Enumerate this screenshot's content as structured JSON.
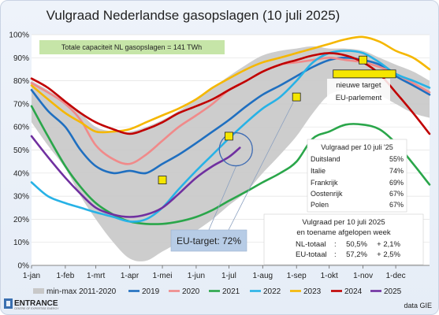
{
  "chart_data": {
    "type": "line",
    "title": "Vulgraad Nederlandse gasopslagen (10 juli 2025)",
    "x_tick_labels": [
      "1-jan",
      "1-feb",
      "1-mrt",
      "1-apr",
      "1-mei",
      "1-jun",
      "1-jul",
      "1-aug",
      "1-sep",
      "1-okt",
      "1-nov",
      "1-dec"
    ],
    "x_tick_days": [
      0,
      31,
      59,
      90,
      120,
      151,
      181,
      212,
      243,
      273,
      304,
      334
    ],
    "x_range_days": [
      0,
      365
    ],
    "ylim": [
      0,
      100
    ],
    "y_ticks": [
      0,
      10,
      20,
      30,
      40,
      50,
      60,
      70,
      80,
      90,
      100
    ],
    "y_tick_labels": [
      "0%",
      "10%",
      "20%",
      "30%",
      "40%",
      "50%",
      "60%",
      "70%",
      "80%",
      "90%",
      "100%"
    ],
    "grid": true,
    "legend_position": "bottom",
    "band": {
      "name": "min-max 2011-2020",
      "color": "#c8c8c8",
      "x": [
        0,
        15,
        31,
        45,
        59,
        75,
        90,
        105,
        120,
        135,
        151,
        166,
        181,
        197,
        212,
        228,
        243,
        258,
        273,
        288,
        304,
        319,
        334,
        350,
        365
      ],
      "upper": [
        80,
        76,
        71,
        66,
        60,
        58,
        58,
        60,
        63,
        67,
        72,
        77,
        82,
        87,
        91,
        93,
        94,
        95,
        94,
        94,
        93,
        90,
        87,
        84,
        80
      ],
      "lower": [
        62,
        52,
        42,
        30,
        20,
        10,
        3,
        2,
        6,
        10,
        15,
        20,
        26,
        32,
        40,
        48,
        56,
        66,
        74,
        76,
        78,
        74,
        70,
        66,
        64
      ]
    },
    "series": [
      {
        "name": "2019",
        "color": "#1f6fc0",
        "x": [
          0,
          15,
          31,
          45,
          59,
          75,
          90,
          105,
          120,
          135,
          151,
          166,
          181,
          197,
          212,
          228,
          243,
          258,
          273,
          288,
          304,
          319,
          334,
          350,
          365
        ],
        "y": [
          76,
          67,
          60,
          50,
          43,
          40,
          41,
          40,
          44,
          48,
          53,
          58,
          63,
          69,
          74,
          78,
          82,
          86,
          89,
          90,
          89,
          87,
          82,
          78,
          74
        ]
      },
      {
        "name": "2020",
        "color": "#f08a8a",
        "x": [
          0,
          15,
          31,
          45,
          59,
          75,
          90,
          105,
          120,
          135,
          151,
          166,
          181,
          197,
          212,
          228,
          243,
          258,
          273,
          288,
          304,
          319,
          334,
          350,
          365
        ],
        "y": [
          79,
          75,
          70,
          63,
          52,
          46,
          44,
          48,
          54,
          60,
          65,
          70,
          76,
          80,
          84,
          87,
          88,
          89,
          90,
          89,
          88,
          86,
          83,
          79,
          75
        ]
      },
      {
        "name": "2021",
        "color": "#2aa64a",
        "x": [
          0,
          15,
          31,
          45,
          59,
          75,
          90,
          105,
          120,
          135,
          151,
          166,
          181,
          197,
          212,
          228,
          243,
          258,
          273,
          288,
          304,
          319,
          334,
          350,
          365
        ],
        "y": [
          69,
          56,
          43,
          34,
          27,
          22,
          19,
          18,
          18,
          19,
          21,
          24,
          28,
          32,
          36,
          40,
          45,
          55,
          58,
          61,
          61,
          59,
          53,
          44,
          35
        ]
      },
      {
        "name": "2022",
        "color": "#27b2e6",
        "x": [
          0,
          15,
          31,
          45,
          59,
          75,
          90,
          105,
          120,
          135,
          151,
          166,
          181,
          197,
          212,
          228,
          243,
          258,
          273,
          288,
          304,
          319,
          334,
          350,
          365
        ],
        "y": [
          36,
          30,
          27,
          25,
          23,
          21,
          19,
          20,
          25,
          33,
          41,
          48,
          55,
          62,
          68,
          73,
          80,
          88,
          92,
          93,
          92,
          88,
          83,
          80,
          77
        ]
      },
      {
        "name": "2023",
        "color": "#f5b700",
        "x": [
          0,
          15,
          31,
          45,
          59,
          75,
          90,
          105,
          120,
          135,
          151,
          166,
          181,
          197,
          212,
          228,
          243,
          258,
          273,
          288,
          304,
          319,
          334,
          350,
          365
        ],
        "y": [
          78,
          72,
          66,
          62,
          58,
          58,
          59,
          62,
          65,
          68,
          72,
          77,
          81,
          85,
          88,
          90,
          92,
          94,
          96,
          98,
          99,
          97,
          93,
          90,
          85
        ]
      },
      {
        "name": "2024",
        "color": "#c00000",
        "x": [
          0,
          15,
          31,
          45,
          59,
          75,
          90,
          105,
          120,
          135,
          151,
          166,
          181,
          197,
          212,
          228,
          243,
          258,
          273,
          288,
          304,
          319,
          334,
          350,
          365
        ],
        "y": [
          81,
          77,
          71,
          66,
          62,
          59,
          57,
          59,
          62,
          66,
          69,
          72,
          76,
          80,
          84,
          87,
          89,
          91,
          92,
          91,
          88,
          83,
          75,
          66,
          57
        ]
      },
      {
        "name": "2025",
        "color": "#7030a0",
        "x": [
          0,
          15,
          31,
          45,
          59,
          75,
          90,
          105,
          120,
          135,
          151,
          166,
          181,
          191
        ],
        "y": [
          56,
          47,
          38,
          31,
          25,
          22,
          21,
          22,
          25,
          31,
          38,
          43,
          47,
          51
        ]
      }
    ],
    "targets_points": [
      {
        "day": 120,
        "value": 37
      },
      {
        "day": 181,
        "value": 56
      },
      {
        "day": 243,
        "value": 73
      },
      {
        "day": 304,
        "value": 89
      }
    ],
    "target_marker_color": "#f5e600",
    "new_target_bar": {
      "value": 83,
      "from_day": 273,
      "to_day": 334
    }
  },
  "annotations": {
    "capacity": "Totale capaciteit NL gasopslagen = 141 TWh",
    "new_target": [
      "nieuwe target",
      "EU-parlement"
    ],
    "eu_target": "EU-target: 72%",
    "eu_table_title": "Vulgraad per 10 juli '25",
    "eu_table_rows": [
      [
        "Duitsland",
        "55%"
      ],
      [
        "Italie",
        "74%"
      ],
      [
        "Frankrijk",
        "69%"
      ],
      [
        "Oostenrijk",
        "67%"
      ],
      [
        "Polen",
        "67%"
      ]
    ],
    "nl_box": {
      "line1": "Vulgraad per 10 juli 2025",
      "line2": "en toename afgelopen week",
      "rows": [
        [
          "NL-totaal",
          ":",
          "50,5%",
          "+ 2,1%"
        ],
        [
          "EU-totaal",
          ":",
          "57,2%",
          "+ 2,5%"
        ]
      ]
    }
  },
  "footer": {
    "logo": "ENTRANCE",
    "logo_sub": "CENTRE OF EXPERTISE ENERGY",
    "source": "data GIE"
  }
}
